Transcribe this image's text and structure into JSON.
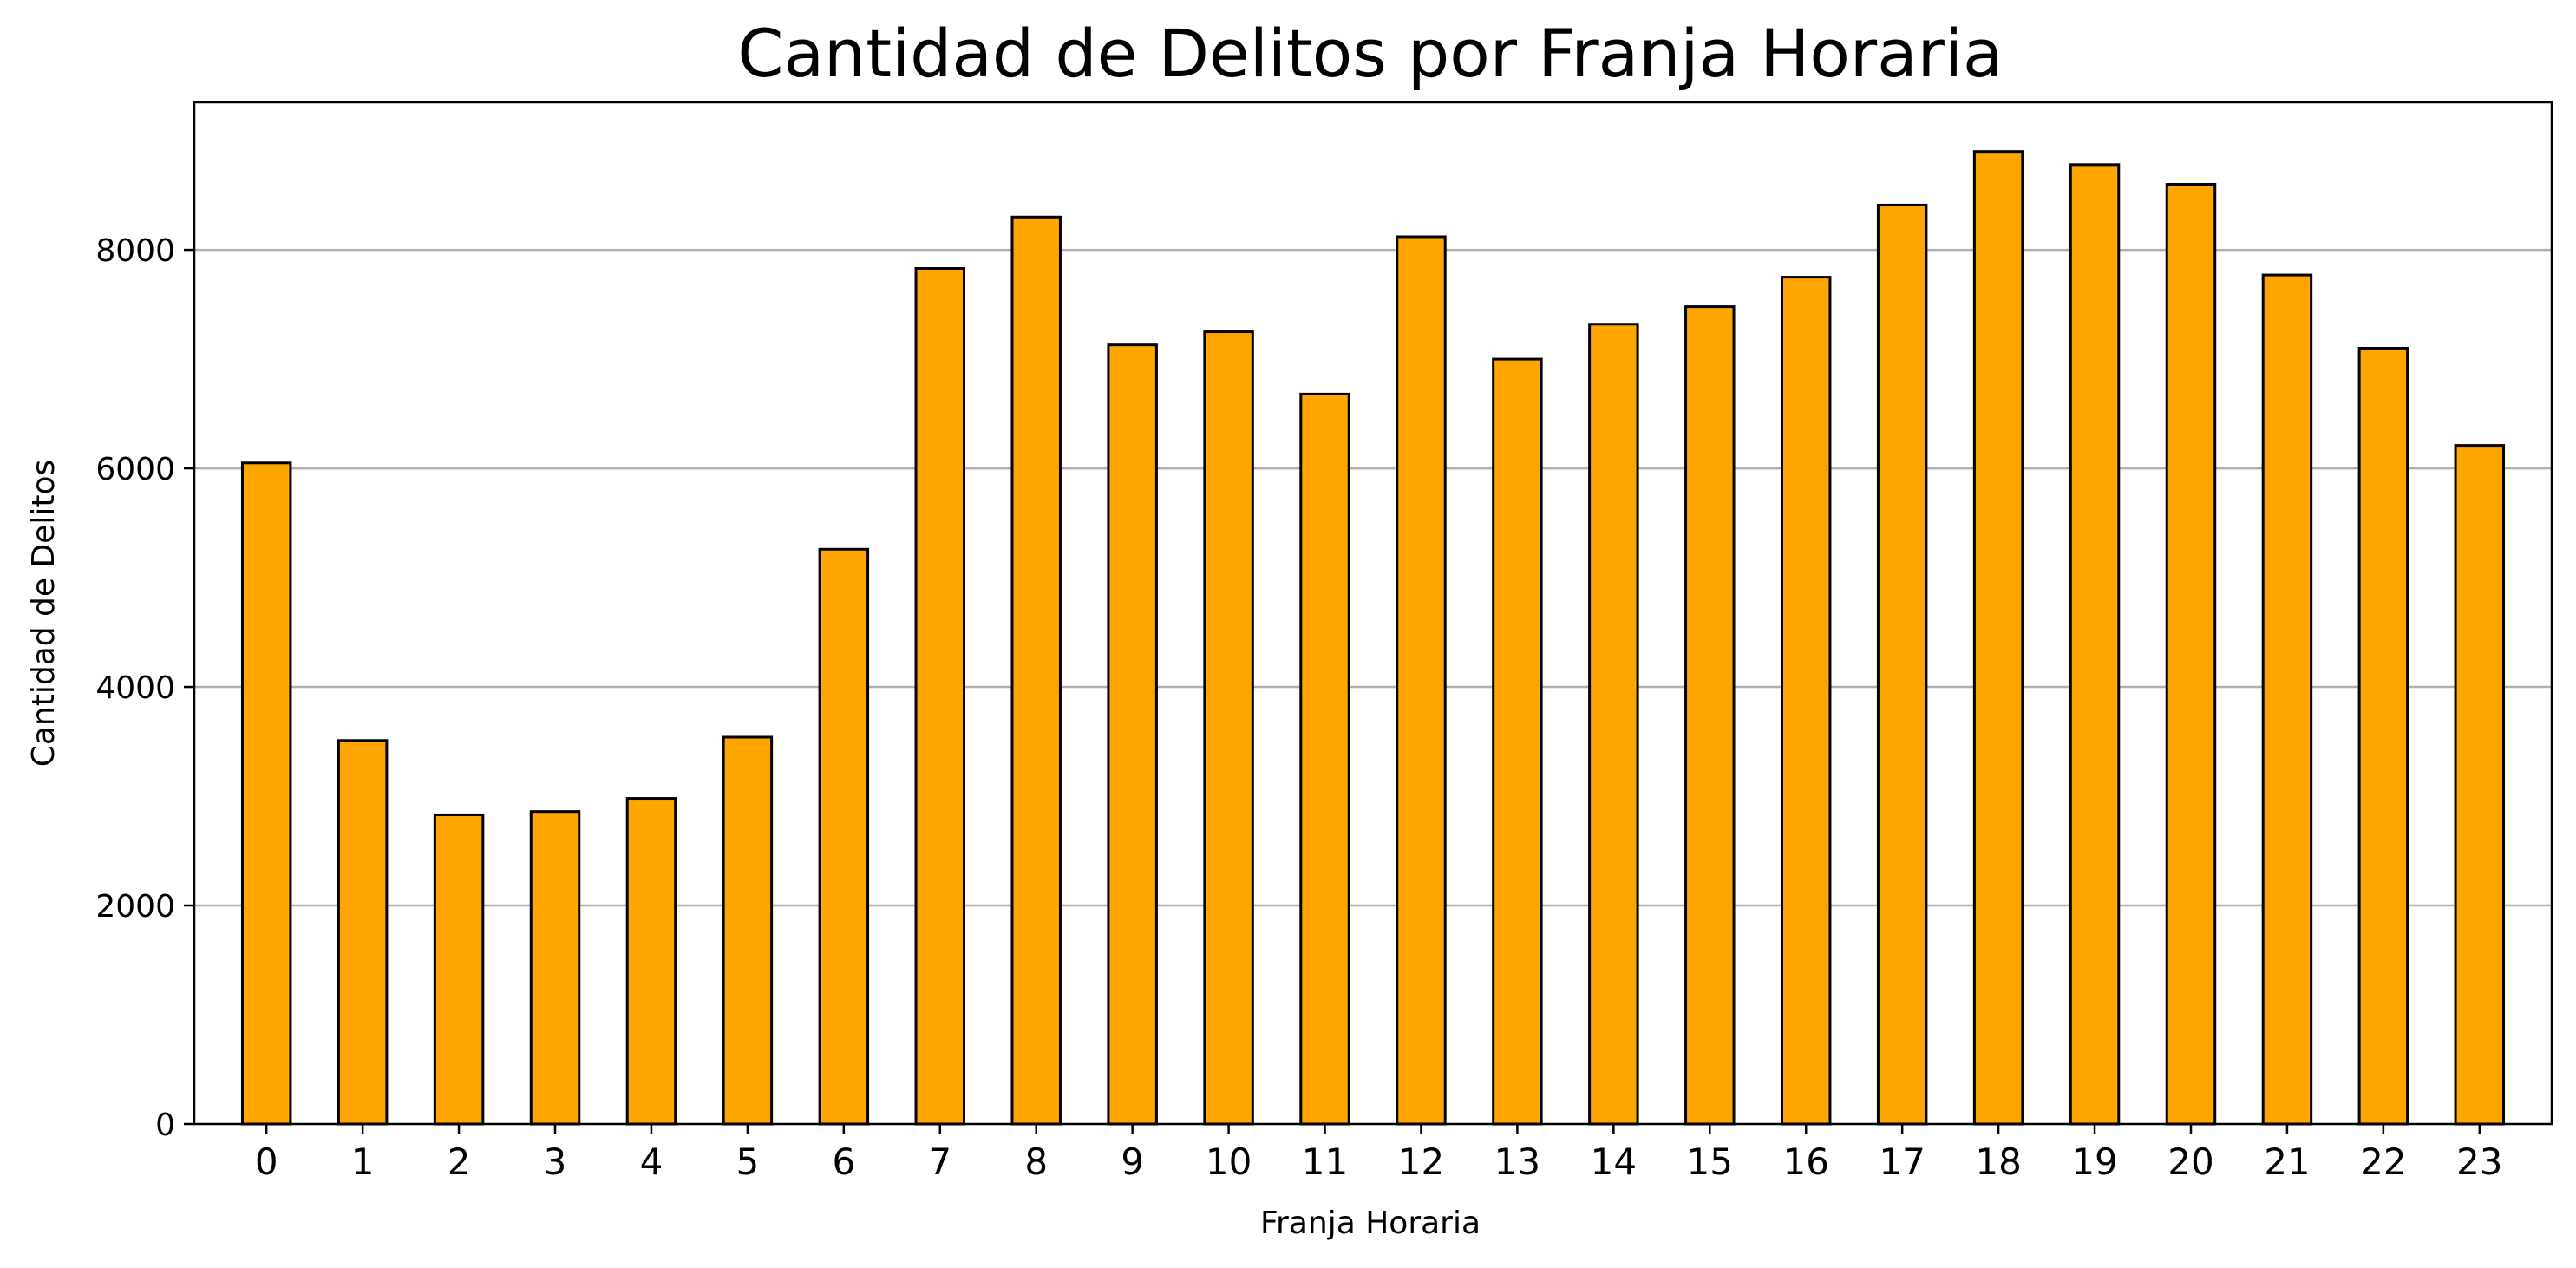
{
  "chart_data": {
    "type": "bar",
    "title": "Cantidad de Delitos por Franja Horaria",
    "xlabel": "Franja Horaria",
    "ylabel": "Cantidad de Delitos",
    "categories": [
      "0",
      "1",
      "2",
      "3",
      "4",
      "5",
      "6",
      "7",
      "8",
      "9",
      "10",
      "11",
      "12",
      "13",
      "14",
      "15",
      "16",
      "17",
      "18",
      "19",
      "20",
      "21",
      "22",
      "23"
    ],
    "values": [
      6050,
      3510,
      2830,
      2860,
      2980,
      3540,
      5260,
      7830,
      8300,
      7130,
      7250,
      6680,
      8120,
      7000,
      7320,
      7480,
      7750,
      8410,
      8900,
      8780,
      8600,
      7770,
      7100,
      6210
    ],
    "yticks": [
      "0",
      "2000",
      "4000",
      "6000",
      "8000"
    ],
    "ylim": [
      0,
      9350
    ],
    "grid": "y",
    "legend": "none",
    "colors": {
      "bar_fill": "#FFA500",
      "bar_edge": "#000000",
      "grid": "#b0b0b0"
    }
  }
}
